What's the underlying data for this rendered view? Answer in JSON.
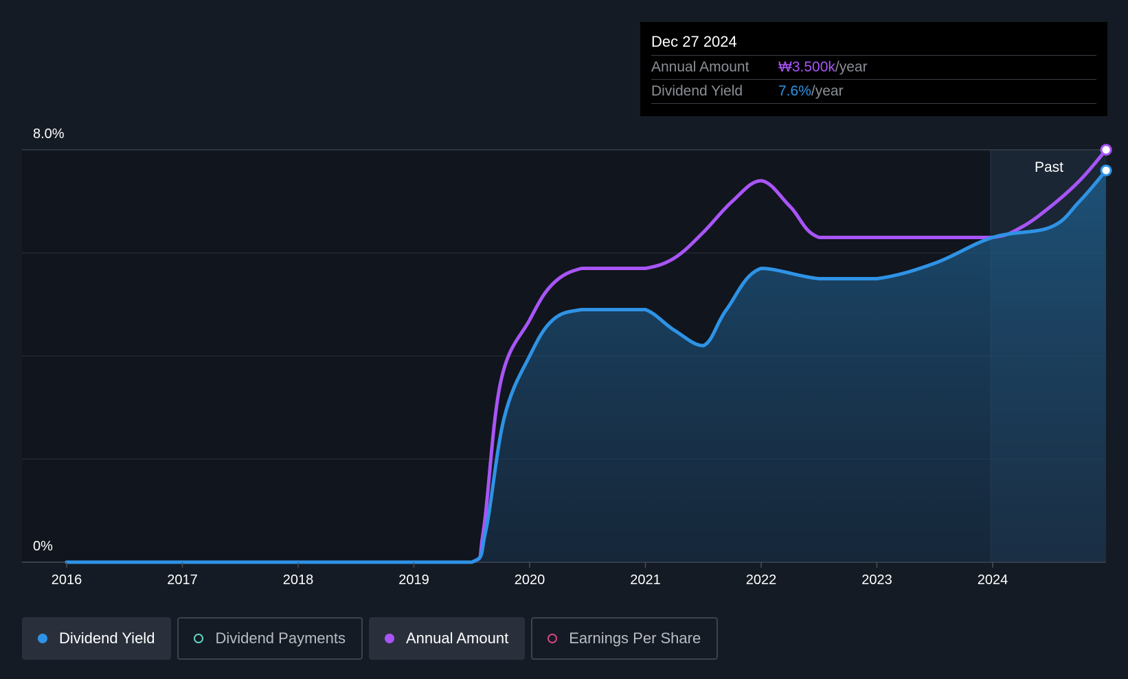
{
  "tooltip": {
    "date": "Dec 27 2024",
    "rows": [
      {
        "label": "Annual Amount",
        "value": "₩3.500k",
        "unit": "/year"
      },
      {
        "label": "Dividend Yield",
        "value": "7.6%",
        "unit": "/year"
      }
    ]
  },
  "chart_data": {
    "type": "line",
    "y_axis": {
      "top_label": "8.0%",
      "bottom_label": "0%",
      "range": [
        0,
        8.0
      ],
      "unit": "%"
    },
    "x_ticks": [
      "2016",
      "2017",
      "2018",
      "2019",
      "2020",
      "2021",
      "2022",
      "2023",
      "2024"
    ],
    "past_label": "Past",
    "grid": true,
    "series": [
      {
        "name": "Dividend Yield",
        "color": "#2e93e6",
        "area": true,
        "points": [
          [
            2016.0,
            0
          ],
          [
            2017.0,
            0
          ],
          [
            2018.0,
            0
          ],
          [
            2019.0,
            0
          ],
          [
            2019.5,
            0
          ],
          [
            2019.62,
            0.6
          ],
          [
            2019.78,
            2.8
          ],
          [
            2020.0,
            4.0
          ],
          [
            2020.2,
            4.7
          ],
          [
            2020.45,
            4.9
          ],
          [
            2020.75,
            4.9
          ],
          [
            2021.0,
            4.9
          ],
          [
            2021.25,
            4.5
          ],
          [
            2021.5,
            4.2
          ],
          [
            2021.7,
            4.9
          ],
          [
            2022.0,
            5.7
          ],
          [
            2022.5,
            5.5
          ],
          [
            2023.0,
            5.5
          ],
          [
            2023.5,
            5.8
          ],
          [
            2024.0,
            6.3
          ],
          [
            2024.5,
            6.5
          ],
          [
            2024.75,
            7.0
          ],
          [
            2024.98,
            7.6
          ]
        ]
      },
      {
        "name": "Annual Amount",
        "color": "#a855f7",
        "area": false,
        "points": [
          [
            2016.0,
            0
          ],
          [
            2017.0,
            0
          ],
          [
            2018.0,
            0
          ],
          [
            2019.0,
            0
          ],
          [
            2019.5,
            0
          ],
          [
            2019.6,
            0.6
          ],
          [
            2019.75,
            3.5
          ],
          [
            2020.0,
            4.7
          ],
          [
            2020.2,
            5.4
          ],
          [
            2020.45,
            5.7
          ],
          [
            2020.75,
            5.7
          ],
          [
            2021.0,
            5.7
          ],
          [
            2021.25,
            5.9
          ],
          [
            2021.5,
            6.4
          ],
          [
            2021.75,
            7.0
          ],
          [
            2022.0,
            7.4
          ],
          [
            2022.25,
            6.9
          ],
          [
            2022.5,
            6.3
          ],
          [
            2023.0,
            6.3
          ],
          [
            2023.5,
            6.3
          ],
          [
            2024.0,
            6.3
          ],
          [
            2024.25,
            6.5
          ],
          [
            2024.5,
            6.9
          ],
          [
            2024.75,
            7.4
          ],
          [
            2024.98,
            8.0
          ]
        ]
      }
    ]
  },
  "legend": [
    {
      "label": "Dividend Yield",
      "color": "#2e93e6",
      "active": true
    },
    {
      "label": "Dividend Payments",
      "color": "#5fd3c4",
      "active": false
    },
    {
      "label": "Annual Amount",
      "color": "#a855f7",
      "active": true
    },
    {
      "label": "Earnings Per Share",
      "color": "#d6457f",
      "active": false
    }
  ]
}
